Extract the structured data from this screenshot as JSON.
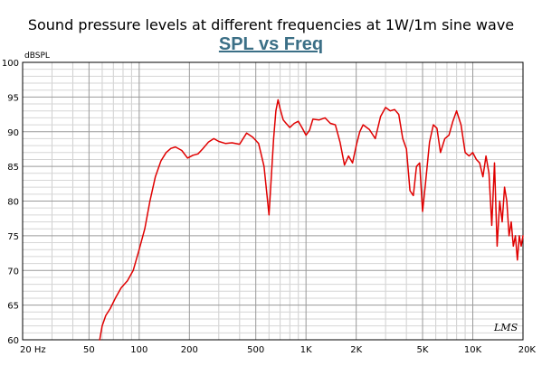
{
  "header": {
    "description": "Sound pressure levels at different frequencies at 1W/1m sine wave"
  },
  "chart_data": {
    "type": "line",
    "title": "SPL vs Freq",
    "ylabel": "dBSPL",
    "xlabel": "",
    "xscale": "log",
    "xlim": [
      20,
      20000
    ],
    "ylim": [
      60,
      100
    ],
    "grid": true,
    "x_ticks": [
      {
        "value": 20,
        "label": "20 Hz"
      },
      {
        "value": 50,
        "label": "50"
      },
      {
        "value": 100,
        "label": "100"
      },
      {
        "value": 200,
        "label": "200"
      },
      {
        "value": 500,
        "label": "500"
      },
      {
        "value": 1000,
        "label": "1K"
      },
      {
        "value": 2000,
        "label": "2K"
      },
      {
        "value": 5000,
        "label": "5K"
      },
      {
        "value": 10000,
        "label": "10K"
      },
      {
        "value": 20000,
        "label": "20K"
      }
    ],
    "y_ticks": [
      60,
      65,
      70,
      75,
      80,
      85,
      90,
      95,
      100
    ],
    "watermark": "LMS",
    "series": [
      {
        "color": "#e00000",
        "x": [
          58,
          60,
          63,
          67,
          72,
          78,
          85,
          92,
          100,
          108,
          116,
          125,
          135,
          145,
          155,
          165,
          180,
          195,
          210,
          225,
          240,
          260,
          280,
          300,
          330,
          360,
          400,
          440,
          480,
          520,
          560,
          600,
          640,
          660,
          680,
          700,
          730,
          760,
          800,
          850,
          900,
          950,
          1000,
          1050,
          1100,
          1200,
          1300,
          1400,
          1500,
          1600,
          1700,
          1800,
          1900,
          2000,
          2100,
          2200,
          2400,
          2600,
          2800,
          3000,
          3200,
          3400,
          3600,
          3800,
          4000,
          4200,
          4400,
          4600,
          4800,
          5000,
          5200,
          5500,
          5800,
          6100,
          6400,
          6800,
          7200,
          7600,
          8000,
          8500,
          9000,
          9500,
          10000,
          10500,
          11000,
          11500,
          12000,
          12500,
          13000,
          13500,
          14000,
          14500,
          15000,
          15500,
          16000,
          16500,
          17000,
          17500,
          18000,
          18500,
          19000,
          19500,
          20000
        ],
        "y": [
          60,
          62,
          63.5,
          64.5,
          66,
          67.5,
          68.5,
          70,
          73,
          76,
          80,
          83.5,
          85.8,
          87,
          87.6,
          87.8,
          87.3,
          86.2,
          86.6,
          86.8,
          87.5,
          88.5,
          89,
          88.6,
          88.3,
          88.4,
          88.2,
          89.8,
          89.2,
          88.3,
          85,
          78,
          89,
          93,
          94.6,
          93.3,
          91.7,
          91.2,
          90.6,
          91.2,
          91.5,
          90.5,
          89.5,
          90.2,
          91.8,
          91.7,
          92,
          91.2,
          91,
          88.5,
          85.2,
          86.5,
          85.5,
          88,
          90,
          91,
          90.3,
          89,
          92.2,
          93.5,
          93,
          93.2,
          92.5,
          89,
          87.5,
          81.5,
          80.8,
          85,
          85.5,
          78.5,
          82.5,
          88.5,
          91,
          90.5,
          87,
          89,
          89.5,
          91.5,
          93,
          91,
          87,
          86.5,
          87,
          86,
          85.5,
          83.5,
          86.5,
          84,
          76.5,
          85.5,
          73.5,
          80,
          77,
          82,
          80,
          75,
          77,
          73.5,
          75,
          71.5,
          75,
          73.5,
          75
        ]
      }
    ]
  }
}
